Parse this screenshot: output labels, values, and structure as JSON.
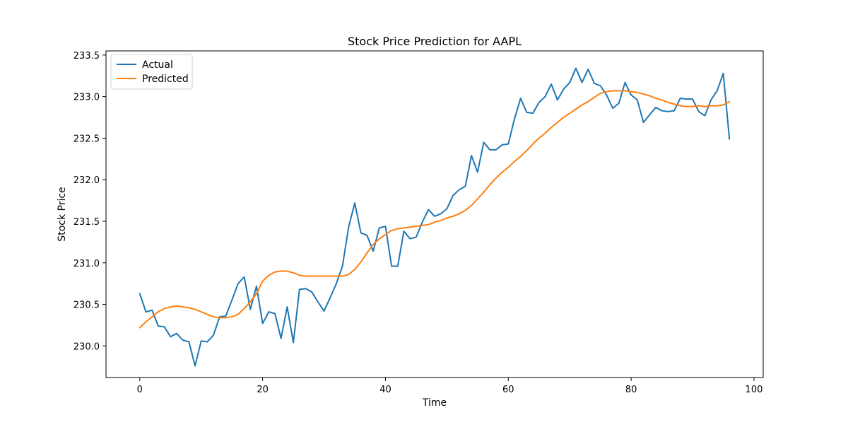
{
  "chart_data": {
    "type": "line",
    "title": "Stock Price Prediction for AAPL",
    "xlabel": "Time",
    "ylabel": "Stock Price",
    "xlim": [
      -5.5,
      101.5
    ],
    "ylim": [
      229.62,
      233.55
    ],
    "xticks": [
      0,
      20,
      40,
      60,
      80,
      100
    ],
    "yticks": [
      230.0,
      230.5,
      231.0,
      231.5,
      232.0,
      232.5,
      233.0,
      233.5
    ],
    "grid": false,
    "legend_position": "top-left",
    "series": [
      {
        "name": "Actual",
        "color": "#1f77b4",
        "x": [
          0,
          1,
          2,
          3,
          4,
          5,
          6,
          7,
          8,
          9,
          10,
          11,
          12,
          13,
          14,
          15,
          16,
          17,
          18,
          19,
          20,
          21,
          22,
          23,
          24,
          25,
          26,
          27,
          28,
          29,
          30,
          31,
          32,
          33,
          34,
          35,
          36,
          37,
          38,
          39,
          40,
          41,
          42,
          43,
          44,
          45,
          46,
          47,
          48,
          49,
          50,
          51,
          52,
          53,
          54,
          55,
          56,
          57,
          58,
          59,
          60,
          61,
          62,
          63,
          64,
          65,
          66,
          67,
          68,
          69,
          70,
          71,
          72,
          73,
          74,
          75,
          76,
          77,
          78,
          79,
          80,
          81,
          82,
          83,
          84,
          85,
          86,
          87,
          88,
          89,
          90,
          91,
          92,
          93,
          94,
          95,
          96
        ],
        "values": [
          230.63,
          230.41,
          230.43,
          230.24,
          230.23,
          230.11,
          230.15,
          230.07,
          230.05,
          229.76,
          230.06,
          230.05,
          230.13,
          230.35,
          230.36,
          230.55,
          230.75,
          230.83,
          230.44,
          230.72,
          230.27,
          230.41,
          230.39,
          230.09,
          230.47,
          230.04,
          230.68,
          230.69,
          230.65,
          230.53,
          230.42,
          230.58,
          230.75,
          230.96,
          231.43,
          231.72,
          231.36,
          231.33,
          231.14,
          231.42,
          231.44,
          230.96,
          230.96,
          231.38,
          231.29,
          231.31,
          231.49,
          231.64,
          231.56,
          231.59,
          231.65,
          231.81,
          231.88,
          231.92,
          232.29,
          232.09,
          232.45,
          232.36,
          232.36,
          232.42,
          232.43,
          232.73,
          232.98,
          232.81,
          232.8,
          232.93,
          233.0,
          233.15,
          232.96,
          233.09,
          233.17,
          233.34,
          233.17,
          233.33,
          233.16,
          233.13,
          233.02,
          232.86,
          232.92,
          233.17,
          233.02,
          232.96,
          232.69,
          232.78,
          232.87,
          232.83,
          232.82,
          232.83,
          232.98,
          232.97,
          232.97,
          232.82,
          232.77,
          232.96,
          233.07,
          233.28,
          232.49
        ]
      },
      {
        "name": "Predicted",
        "color": "#ff7f0e",
        "x": [
          0,
          1,
          2,
          3,
          4,
          5,
          6,
          7,
          8,
          9,
          10,
          11,
          12,
          13,
          14,
          15,
          16,
          17,
          18,
          19,
          20,
          21,
          22,
          23,
          24,
          25,
          26,
          27,
          28,
          29,
          30,
          31,
          32,
          33,
          34,
          35,
          36,
          37,
          38,
          39,
          40,
          41,
          42,
          43,
          44,
          45,
          46,
          47,
          48,
          49,
          50,
          51,
          52,
          53,
          54,
          55,
          56,
          57,
          58,
          59,
          60,
          61,
          62,
          63,
          64,
          65,
          66,
          67,
          68,
          69,
          70,
          71,
          72,
          73,
          74,
          75,
          76,
          77,
          78,
          79,
          80,
          81,
          82,
          83,
          84,
          85,
          86,
          87,
          88,
          89,
          90,
          91,
          92,
          93,
          94,
          95,
          96
        ],
        "values": [
          230.22,
          230.29,
          230.35,
          230.41,
          230.45,
          230.47,
          230.48,
          230.47,
          230.46,
          230.44,
          230.41,
          230.38,
          230.35,
          230.34,
          230.34,
          230.35,
          230.38,
          230.45,
          230.53,
          230.63,
          230.78,
          230.85,
          230.89,
          230.9,
          230.9,
          230.88,
          230.85,
          230.84,
          230.84,
          230.84,
          230.84,
          230.84,
          230.84,
          230.84,
          230.86,
          230.92,
          231.01,
          231.12,
          231.22,
          231.29,
          231.34,
          231.39,
          231.41,
          231.42,
          231.43,
          231.44,
          231.45,
          231.46,
          231.49,
          231.51,
          231.54,
          231.56,
          231.59,
          231.63,
          231.69,
          231.77,
          231.85,
          231.94,
          232.02,
          232.09,
          232.15,
          232.22,
          232.28,
          232.35,
          232.43,
          232.5,
          232.56,
          232.63,
          232.69,
          232.75,
          232.8,
          232.85,
          232.9,
          232.94,
          232.99,
          233.04,
          233.06,
          233.07,
          233.07,
          233.07,
          233.06,
          233.05,
          233.03,
          233.01,
          232.98,
          232.96,
          232.93,
          232.91,
          232.89,
          232.88,
          232.88,
          232.89,
          232.88,
          232.89,
          232.89,
          232.9,
          232.94
        ]
      }
    ]
  }
}
